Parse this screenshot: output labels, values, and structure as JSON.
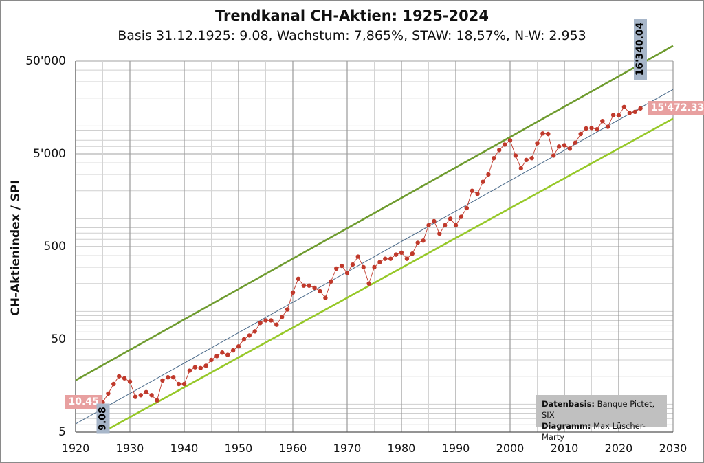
{
  "chart_data": {
    "type": "line",
    "title": "Trendkanal CH-Aktien: 1925-2024",
    "subtitle": "Basis 31.12.1925: 9.08, Wachstum: 7,865%, STAW: 18,57%, N-W: 2.953",
    "xlabel": "",
    "ylabel": "CH-Aktienindex / SPI",
    "y_scale": "log",
    "xlim": [
      1920,
      2030
    ],
    "ylim": [
      5,
      50000
    ],
    "x_ticks": [
      "1920",
      "1930",
      "1940",
      "1950",
      "1960",
      "1970",
      "1980",
      "1990",
      "2000",
      "2010",
      "2020",
      "2030"
    ],
    "y_ticks": [
      "5",
      "50",
      "500",
      "5'000",
      "50'000"
    ],
    "grid": true,
    "colors": {
      "index": "#c0392b",
      "trend": "#4a6a8a",
      "upper": "#6e9b2e",
      "lower": "#96c828"
    },
    "series": [
      {
        "role": "index",
        "x": [
          1925,
          1926,
          1927,
          1928,
          1929,
          1930,
          1931,
          1932,
          1933,
          1934,
          1935,
          1936,
          1937,
          1938,
          1939,
          1940,
          1941,
          1942,
          1943,
          1944,
          1945,
          1946,
          1947,
          1948,
          1949,
          1950,
          1951,
          1952,
          1953,
          1954,
          1955,
          1956,
          1957,
          1958,
          1959,
          1960,
          1961,
          1962,
          1963,
          1964,
          1965,
          1966,
          1967,
          1968,
          1969,
          1970,
          1971,
          1972,
          1973,
          1974,
          1975,
          1976,
          1977,
          1978,
          1979,
          1980,
          1981,
          1982,
          1983,
          1984,
          1985,
          1986,
          1987,
          1988,
          1989,
          1990,
          1991,
          1992,
          1993,
          1994,
          1995,
          1996,
          1997,
          1998,
          1999,
          2000,
          2001,
          2002,
          2003,
          2004,
          2005,
          2006,
          2007,
          2008,
          2009,
          2010,
          2011,
          2012,
          2013,
          2014,
          2015,
          2016,
          2017,
          2018,
          2019,
          2020,
          2021,
          2022,
          2023,
          2024
        ],
        "values": [
          10.45,
          13,
          16.5,
          20,
          19,
          17.5,
          12,
          12.5,
          13.5,
          12.5,
          11,
          18,
          19.5,
          19.5,
          16.5,
          16.5,
          23,
          25,
          24.5,
          26,
          30,
          33,
          36,
          34,
          38,
          42,
          50,
          55,
          61,
          75,
          80,
          80,
          72,
          87,
          105,
          160,
          225,
          190,
          190,
          180,
          165,
          140,
          210,
          290,
          310,
          260,
          320,
          390,
          300,
          200,
          300,
          340,
          370,
          370,
          410,
          430,
          370,
          420,
          550,
          580,
          850,
          940,
          690,
          850,
          1000,
          850,
          1050,
          1300,
          2000,
          1850,
          2500,
          3000,
          4500,
          5500,
          6300,
          7000,
          4800,
          3500,
          4300,
          4500,
          6500,
          8300,
          8200,
          4800,
          6000,
          6200,
          5700,
          6600,
          8200,
          9400,
          9500,
          9200,
          11300,
          9800,
          13100,
          13000,
          16000,
          13800,
          14200,
          15472.33
        ]
      },
      {
        "role": "trend",
        "x": [
          1920,
          2030
        ],
        "values": [
          6.13,
          24760
        ]
      },
      {
        "role": "upper",
        "x": [
          1920,
          2030
        ],
        "values": [
          18.1,
          73100
        ]
      },
      {
        "role": "lower",
        "x": [
          1925,
          2030
        ],
        "values": [
          5.0,
          12000
        ]
      }
    ],
    "annotations": [
      {
        "text": "10.45",
        "x": 1925,
        "y": 10.45,
        "style": "red"
      },
      {
        "text": "15'472.33",
        "x": 2024,
        "y": 15472.33,
        "style": "red"
      },
      {
        "text": "9.08",
        "x": 1925,
        "y": 9.08,
        "style": "blue"
      },
      {
        "text": "16'340.04",
        "x": 2024,
        "y": 16340.04,
        "style": "blue"
      }
    ],
    "credits": {
      "source_label": "Datenbasis:",
      "source_value": "Banque Pictet, SIX",
      "author_label": "Diagramm:",
      "author_value": "Max Lüscher-Marty"
    }
  }
}
